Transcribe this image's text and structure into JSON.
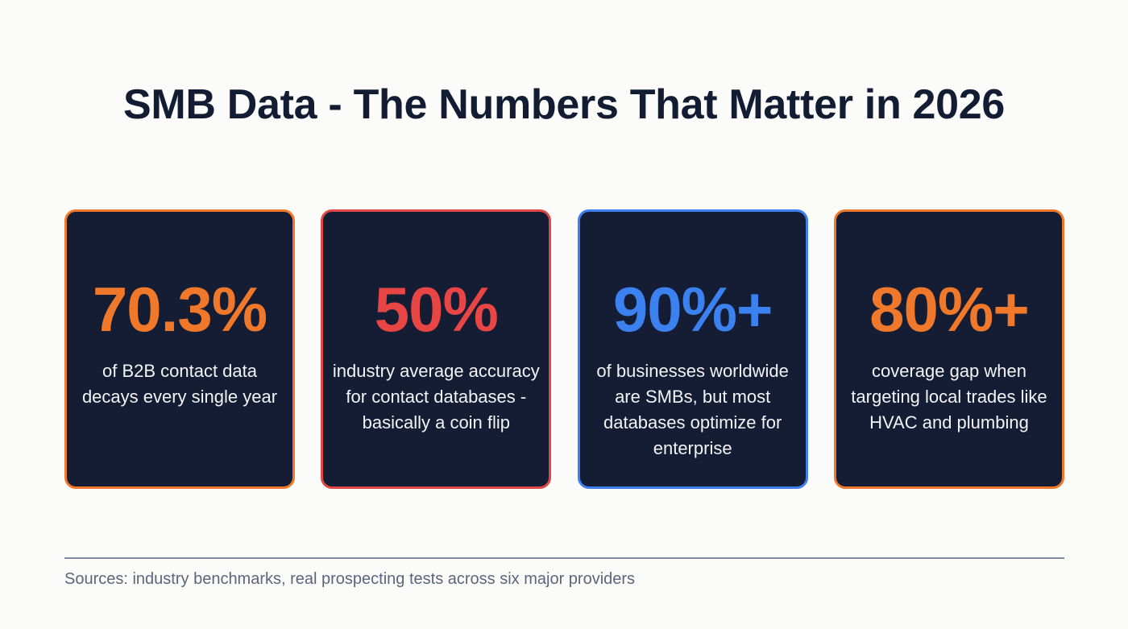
{
  "header": {
    "title": "SMB Data - The Numbers That Matter in 2026"
  },
  "cards": [
    {
      "stat": "70.3%",
      "description": "of B2B contact data decays every single year",
      "accent_color": "#f0782a",
      "border_color": "#f0782a"
    },
    {
      "stat": "50%",
      "description": "industry average accuracy for contact databases - basically a coin flip",
      "accent_color": "#e84545",
      "border_color": "#e04848"
    },
    {
      "stat": "90%+",
      "description": "of businesses worldwide are SMBs, but most databases optimize for enterprise",
      "accent_color": "#3b82f0",
      "border_color": "#3b7ff0"
    },
    {
      "stat": "80%+",
      "description": "coverage gap when targeting local trades like HVAC and plumbing",
      "accent_color": "#f0782a",
      "border_color": "#f0782a"
    }
  ],
  "footer": {
    "sources": "Sources: industry benchmarks, real prospecting tests across six major providers"
  },
  "colors": {
    "background": "#fbfbf9",
    "card_background": "#141d33",
    "title": "#121c33",
    "divider": "#7d8ba1",
    "sources_text": "#5b667a"
  }
}
